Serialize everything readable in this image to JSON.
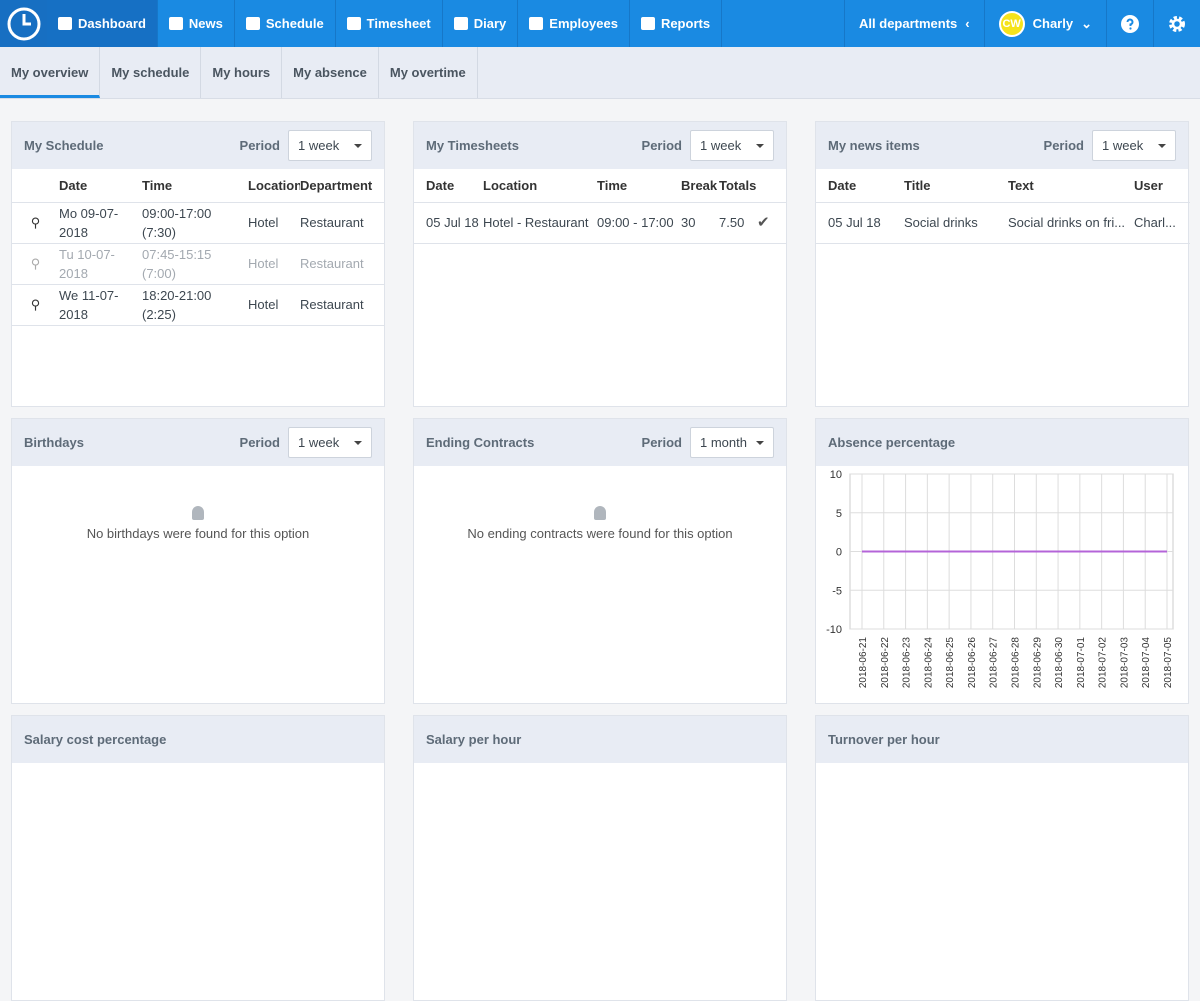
{
  "nav": {
    "items": [
      "Dashboard",
      "News",
      "Schedule",
      "Timesheet",
      "Diary",
      "Employees",
      "Reports"
    ],
    "departments": "All departments",
    "avatar": "CW",
    "user": "Charly"
  },
  "tabs": [
    "My overview",
    "My schedule",
    "My hours",
    "My absence",
    "My overtime"
  ],
  "schedule": {
    "title": "My Schedule",
    "period_label": "Period",
    "period": "1 week",
    "columns": [
      "Date",
      "Time",
      "Location",
      "Department"
    ],
    "rows": [
      [
        "Mo 09-07-2018",
        "09:00-17:00 (7:30)",
        "Hotel",
        "Restaurant"
      ],
      [
        "Tu 10-07-2018",
        "07:45-15:15 (7:00)",
        "Hotel",
        "Restaurant"
      ],
      [
        "We 11-07-2018",
        "18:20-21:00 (2:25)",
        "Hotel",
        "Restaurant"
      ]
    ]
  },
  "timesheets": {
    "title": "My Timesheets",
    "period_label": "Period",
    "period": "1 week",
    "columns": [
      "Date",
      "Location",
      "Time",
      "Break",
      "Totals"
    ],
    "rows": [
      [
        "05 Jul 18",
        "Hotel - Restaurant",
        "09:00 - 17:00",
        "30",
        "7.50"
      ]
    ]
  },
  "news": {
    "title": "My news items",
    "period_label": "Period",
    "period": "1 week",
    "columns": [
      "Date",
      "Title",
      "Text",
      "User"
    ],
    "rows": [
      [
        "05 Jul 18",
        "Social drinks",
        "Social drinks on fri...",
        "Charl..."
      ]
    ]
  },
  "birthdays": {
    "title": "Birthdays",
    "period_label": "Period",
    "period": "1 week",
    "message": "No birthdays were found for this option"
  },
  "contracts": {
    "title": "Ending Contracts",
    "period_label": "Period",
    "period": "1 month",
    "message": "No ending contracts were found for this option"
  },
  "absence": {
    "title": "Absence percentage",
    "chart": {
      "type": "line",
      "x": [
        "2018-06-21",
        "2018-06-22",
        "2018-06-23",
        "2018-06-24",
        "2018-06-25",
        "2018-06-26",
        "2018-06-27",
        "2018-06-28",
        "2018-06-29",
        "2018-06-30",
        "2018-07-01",
        "2018-07-02",
        "2018-07-03",
        "2018-07-04",
        "2018-07-05"
      ],
      "values": [
        0,
        0,
        0,
        0,
        0,
        0,
        0,
        0,
        0,
        0,
        0,
        0,
        0,
        0,
        0
      ],
      "color": "#b464d8",
      "ylim": [
        -10,
        10
      ],
      "yticks": [
        10,
        5,
        0,
        -5,
        -10
      ],
      "grid": true
    }
  },
  "bottom": [
    "Salary cost percentage",
    "Salary per hour",
    "Turnover per hour"
  ]
}
